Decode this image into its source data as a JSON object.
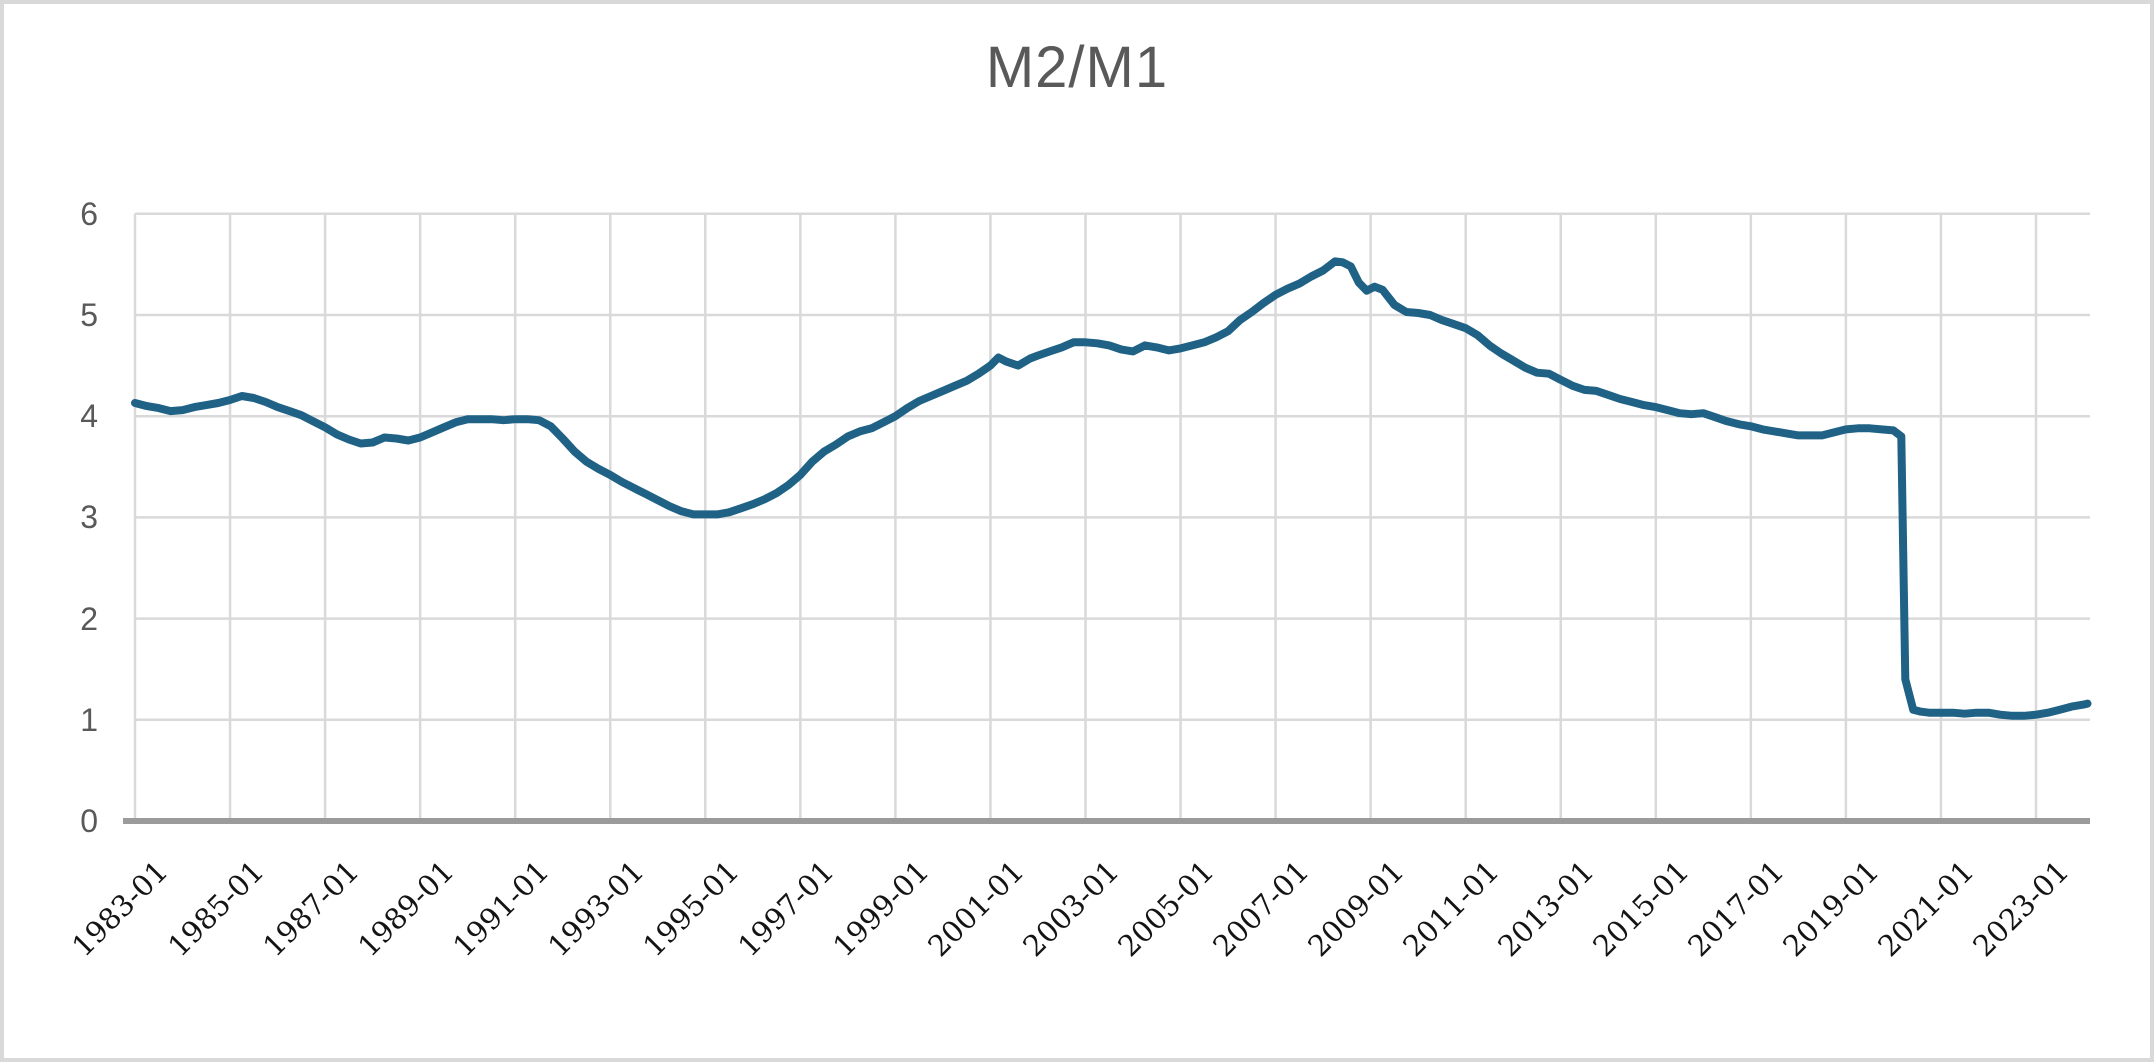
{
  "chart_data": {
    "type": "line",
    "title": "M2/M1",
    "grid": true,
    "legend": "none",
    "ylim": [
      0,
      6
    ],
    "y_ticks": [
      "0",
      "1",
      "2",
      "3",
      "4",
      "5",
      "6"
    ],
    "x_ticks": [
      "1983-01",
      "1985-01",
      "1987-01",
      "1989-01",
      "1991-01",
      "1993-01",
      "1995-01",
      "1997-01",
      "1999-01",
      "2001-01",
      "2003-01",
      "2005-01",
      "2007-01",
      "2009-01",
      "2011-01",
      "2013-01",
      "2015-01",
      "2017-01",
      "2019-01",
      "2021-01",
      "2023-01"
    ],
    "x_range": [
      "1983-01",
      "2024-02"
    ],
    "colors": {
      "line": "#1f6286",
      "grid": "#d9d9d9",
      "axis": "#9b9b9b",
      "title": "#595959",
      "y_label": "#595959",
      "x_label": "#141414",
      "border": "#d9d9d9",
      "background": "#ffffff"
    },
    "series": [
      {
        "name": "M2/M1",
        "points": [
          [
            "1983-01",
            4.13
          ],
          [
            "1983-04",
            4.1
          ],
          [
            "1983-07",
            4.08
          ],
          [
            "1983-10",
            4.05
          ],
          [
            "1984-01",
            4.06
          ],
          [
            "1984-04",
            4.09
          ],
          [
            "1984-07",
            4.11
          ],
          [
            "1984-10",
            4.13
          ],
          [
            "1985-01",
            4.16
          ],
          [
            "1985-04",
            4.2
          ],
          [
            "1985-07",
            4.18
          ],
          [
            "1985-10",
            4.14
          ],
          [
            "1986-01",
            4.09
          ],
          [
            "1986-04",
            4.05
          ],
          [
            "1986-07",
            4.01
          ],
          [
            "1986-10",
            3.95
          ],
          [
            "1987-01",
            3.89
          ],
          [
            "1987-04",
            3.82
          ],
          [
            "1987-07",
            3.77
          ],
          [
            "1987-10",
            3.73
          ],
          [
            "1988-01",
            3.74
          ],
          [
            "1988-04",
            3.79
          ],
          [
            "1988-07",
            3.78
          ],
          [
            "1988-10",
            3.76
          ],
          [
            "1989-01",
            3.79
          ],
          [
            "1989-04",
            3.84
          ],
          [
            "1989-07",
            3.89
          ],
          [
            "1989-10",
            3.94
          ],
          [
            "1990-01",
            3.97
          ],
          [
            "1990-04",
            3.97
          ],
          [
            "1990-07",
            3.97
          ],
          [
            "1990-10",
            3.96
          ],
          [
            "1991-01",
            3.97
          ],
          [
            "1991-04",
            3.97
          ],
          [
            "1991-07",
            3.96
          ],
          [
            "1991-10",
            3.9
          ],
          [
            "1992-01",
            3.78
          ],
          [
            "1992-04",
            3.65
          ],
          [
            "1992-07",
            3.55
          ],
          [
            "1992-10",
            3.48
          ],
          [
            "1993-01",
            3.42
          ],
          [
            "1993-04",
            3.35
          ],
          [
            "1993-07",
            3.29
          ],
          [
            "1993-10",
            3.23
          ],
          [
            "1994-01",
            3.17
          ],
          [
            "1994-04",
            3.11
          ],
          [
            "1994-07",
            3.06
          ],
          [
            "1994-10",
            3.03
          ],
          [
            "1995-01",
            3.03
          ],
          [
            "1995-04",
            3.03
          ],
          [
            "1995-07",
            3.05
          ],
          [
            "1995-10",
            3.09
          ],
          [
            "1996-01",
            3.13
          ],
          [
            "1996-04",
            3.18
          ],
          [
            "1996-07",
            3.24
          ],
          [
            "1996-10",
            3.32
          ],
          [
            "1997-01",
            3.42
          ],
          [
            "1997-04",
            3.55
          ],
          [
            "1997-07",
            3.65
          ],
          [
            "1997-10",
            3.72
          ],
          [
            "1998-01",
            3.8
          ],
          [
            "1998-04",
            3.85
          ],
          [
            "1998-07",
            3.88
          ],
          [
            "1998-10",
            3.94
          ],
          [
            "1999-01",
            4.0
          ],
          [
            "1999-04",
            4.08
          ],
          [
            "1999-07",
            4.15
          ],
          [
            "1999-10",
            4.2
          ],
          [
            "2000-01",
            4.25
          ],
          [
            "2000-04",
            4.3
          ],
          [
            "2000-07",
            4.35
          ],
          [
            "2000-10",
            4.42
          ],
          [
            "2001-01",
            4.5
          ],
          [
            "2001-03",
            4.58
          ],
          [
            "2001-05",
            4.54
          ],
          [
            "2001-08",
            4.5
          ],
          [
            "2001-11",
            4.57
          ],
          [
            "2002-01",
            4.6
          ],
          [
            "2002-04",
            4.64
          ],
          [
            "2002-07",
            4.68
          ],
          [
            "2002-10",
            4.73
          ],
          [
            "2003-01",
            4.73
          ],
          [
            "2003-04",
            4.72
          ],
          [
            "2003-07",
            4.7
          ],
          [
            "2003-10",
            4.66
          ],
          [
            "2004-01",
            4.64
          ],
          [
            "2004-04",
            4.7
          ],
          [
            "2004-07",
            4.68
          ],
          [
            "2004-10",
            4.65
          ],
          [
            "2005-01",
            4.67
          ],
          [
            "2005-04",
            4.7
          ],
          [
            "2005-07",
            4.73
          ],
          [
            "2005-10",
            4.78
          ],
          [
            "2006-01",
            4.84
          ],
          [
            "2006-04",
            4.95
          ],
          [
            "2006-07",
            5.03
          ],
          [
            "2006-10",
            5.12
          ],
          [
            "2007-01",
            5.2
          ],
          [
            "2007-04",
            5.26
          ],
          [
            "2007-07",
            5.31
          ],
          [
            "2007-10",
            5.38
          ],
          [
            "2008-01",
            5.44
          ],
          [
            "2008-04",
            5.53
          ],
          [
            "2008-06",
            5.52
          ],
          [
            "2008-08",
            5.48
          ],
          [
            "2008-10",
            5.32
          ],
          [
            "2008-12",
            5.24
          ],
          [
            "2009-02",
            5.28
          ],
          [
            "2009-04",
            5.25
          ],
          [
            "2009-07",
            5.1
          ],
          [
            "2009-10",
            5.03
          ],
          [
            "2010-01",
            5.02
          ],
          [
            "2010-04",
            5.0
          ],
          [
            "2010-07",
            4.95
          ],
          [
            "2010-10",
            4.91
          ],
          [
            "2011-01",
            4.87
          ],
          [
            "2011-04",
            4.8
          ],
          [
            "2011-07",
            4.7
          ],
          [
            "2011-10",
            4.62
          ],
          [
            "2012-01",
            4.55
          ],
          [
            "2012-04",
            4.48
          ],
          [
            "2012-07",
            4.43
          ],
          [
            "2012-10",
            4.42
          ],
          [
            "2013-01",
            4.36
          ],
          [
            "2013-04",
            4.3
          ],
          [
            "2013-07",
            4.26
          ],
          [
            "2013-10",
            4.25
          ],
          [
            "2014-01",
            4.21
          ],
          [
            "2014-04",
            4.17
          ],
          [
            "2014-07",
            4.14
          ],
          [
            "2014-10",
            4.11
          ],
          [
            "2015-01",
            4.09
          ],
          [
            "2015-04",
            4.06
          ],
          [
            "2015-07",
            4.03
          ],
          [
            "2015-10",
            4.02
          ],
          [
            "2016-01",
            4.03
          ],
          [
            "2016-04",
            3.99
          ],
          [
            "2016-07",
            3.95
          ],
          [
            "2016-10",
            3.92
          ],
          [
            "2017-01",
            3.9
          ],
          [
            "2017-04",
            3.87
          ],
          [
            "2017-07",
            3.85
          ],
          [
            "2017-10",
            3.83
          ],
          [
            "2018-01",
            3.81
          ],
          [
            "2018-04",
            3.81
          ],
          [
            "2018-07",
            3.81
          ],
          [
            "2018-10",
            3.84
          ],
          [
            "2019-01",
            3.87
          ],
          [
            "2019-04",
            3.88
          ],
          [
            "2019-07",
            3.88
          ],
          [
            "2019-10",
            3.87
          ],
          [
            "2020-01",
            3.86
          ],
          [
            "2020-03",
            3.8
          ],
          [
            "2020-04",
            1.4
          ],
          [
            "2020-06",
            1.1
          ],
          [
            "2020-08",
            1.08
          ],
          [
            "2020-10",
            1.07
          ],
          [
            "2021-01",
            1.07
          ],
          [
            "2021-04",
            1.07
          ],
          [
            "2021-07",
            1.06
          ],
          [
            "2021-10",
            1.07
          ],
          [
            "2022-01",
            1.07
          ],
          [
            "2022-04",
            1.05
          ],
          [
            "2022-07",
            1.04
          ],
          [
            "2022-10",
            1.04
          ],
          [
            "2023-01",
            1.05
          ],
          [
            "2023-04",
            1.07
          ],
          [
            "2023-07",
            1.1
          ],
          [
            "2023-10",
            1.13
          ],
          [
            "2024-01",
            1.15
          ],
          [
            "2024-02",
            1.16
          ]
        ]
      }
    ]
  }
}
